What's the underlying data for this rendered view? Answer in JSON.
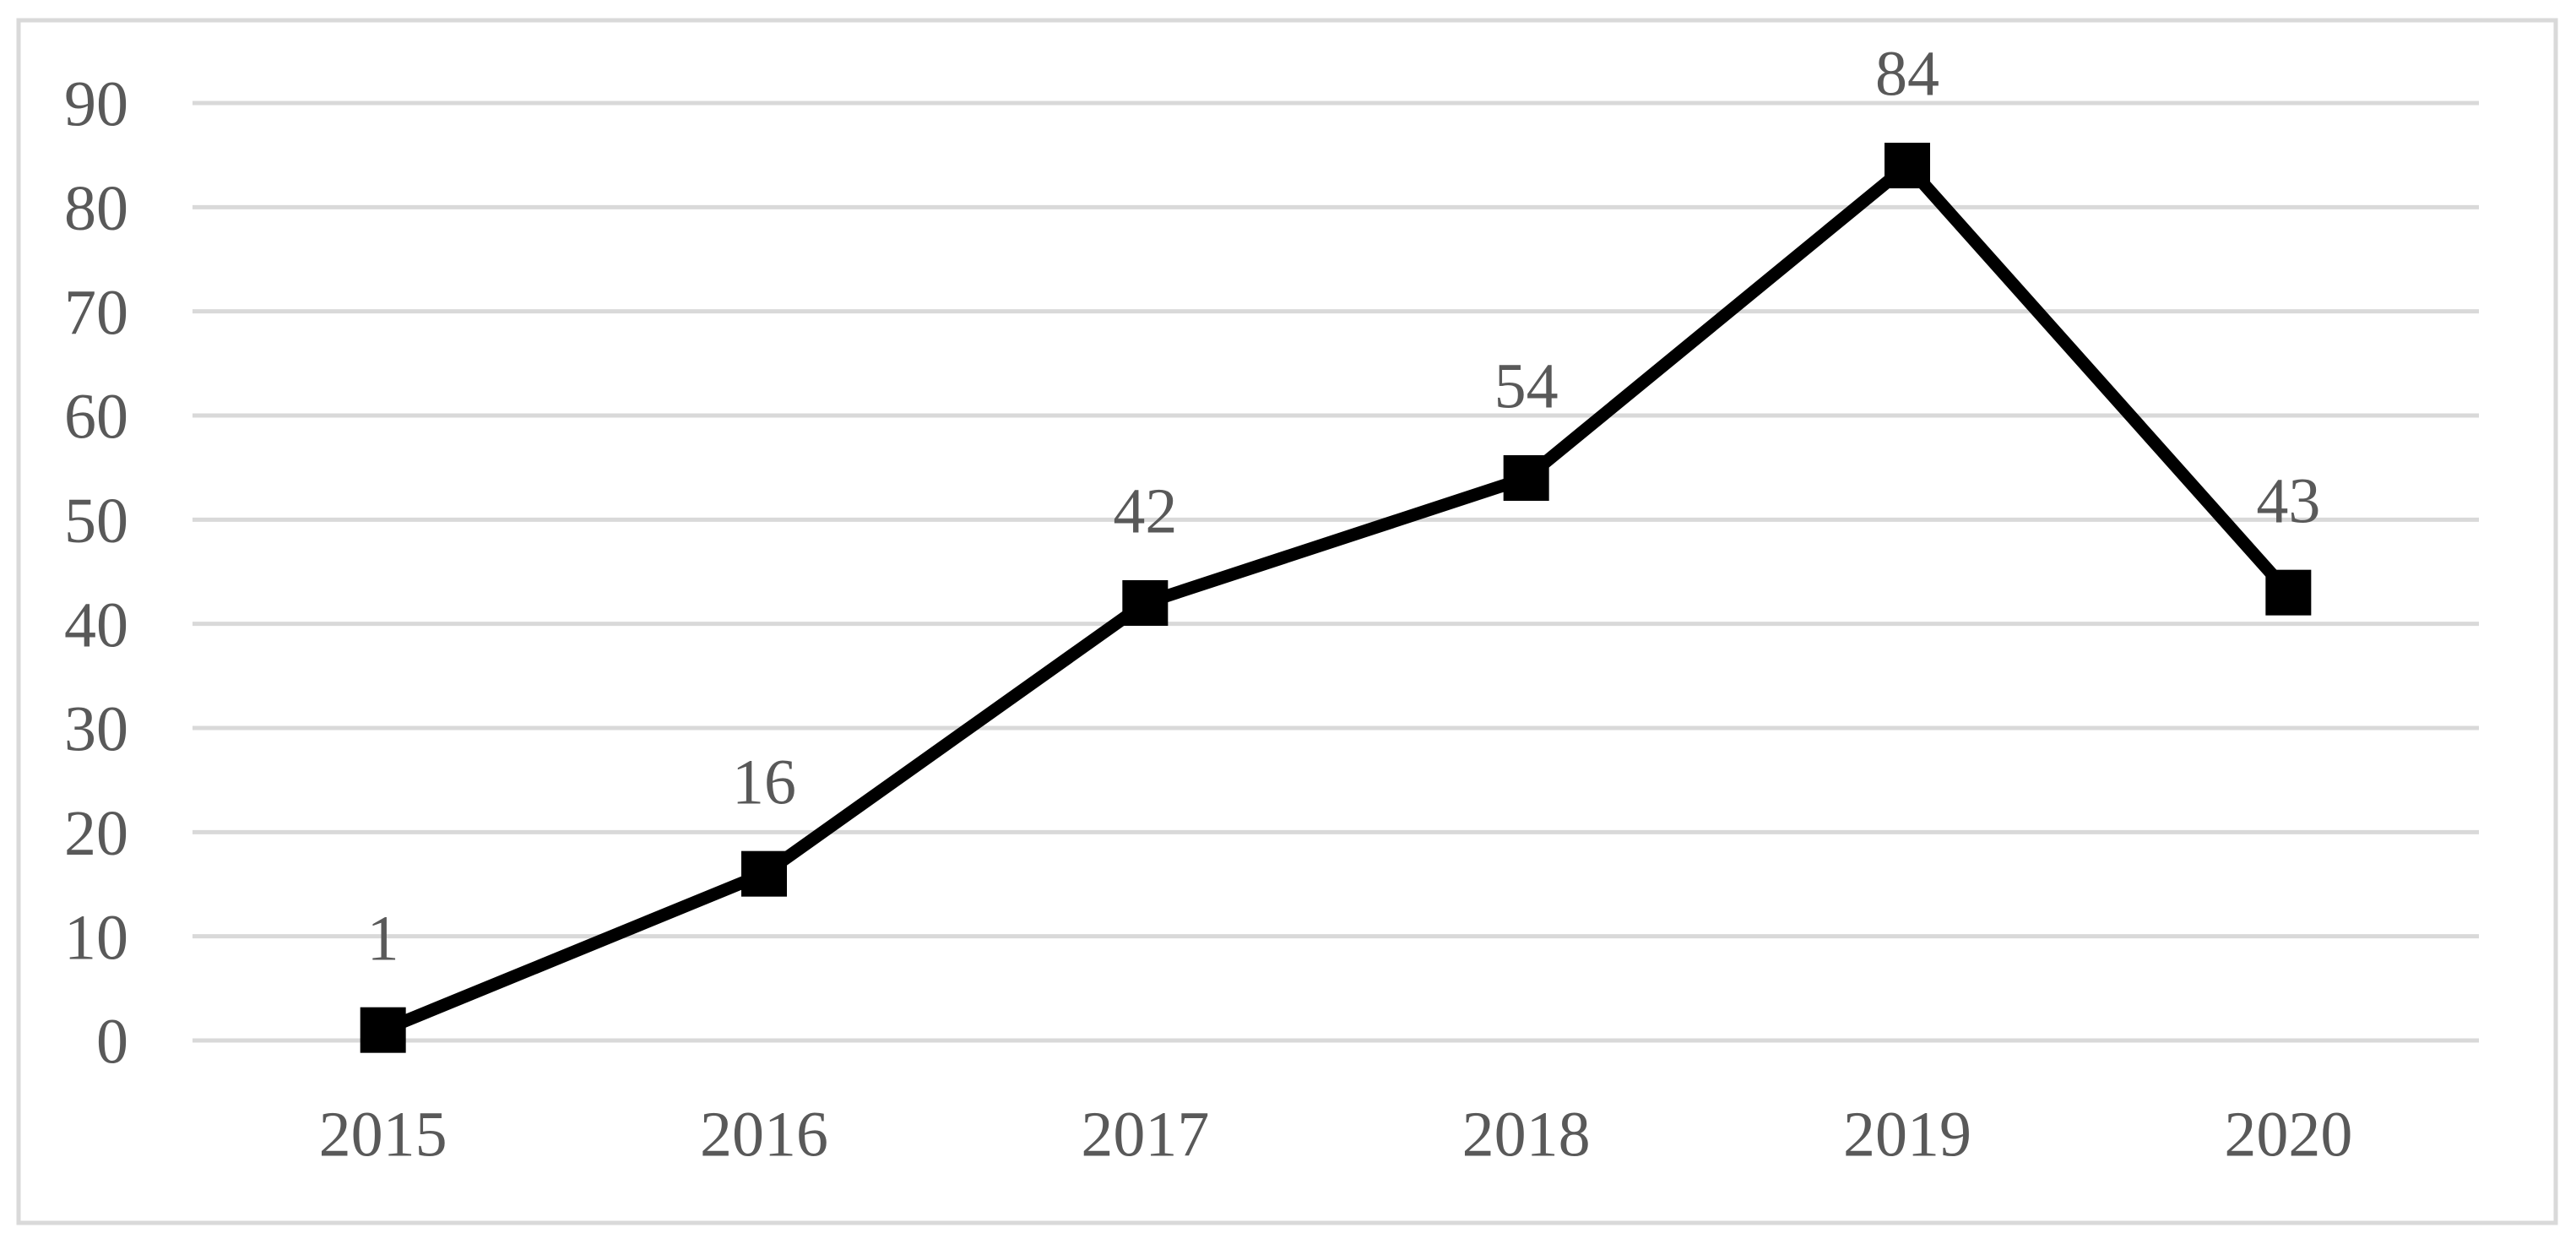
{
  "chart_data": {
    "type": "line",
    "title": "",
    "xlabel": "",
    "ylabel": "",
    "categories": [
      "2015",
      "2016",
      "2017",
      "2018",
      "2019",
      "2020"
    ],
    "values": [
      1,
      16,
      42,
      54,
      84,
      43
    ],
    "data_labels": [
      "1",
      "16",
      "42",
      "54",
      "84",
      "43"
    ],
    "ylim": [
      0,
      90
    ],
    "yticks": [
      0,
      10,
      20,
      30,
      40,
      50,
      60,
      70,
      80,
      90
    ],
    "ytick_labels": [
      "0",
      "10",
      "20",
      "30",
      "40",
      "50",
      "60",
      "70",
      "80",
      "90"
    ],
    "grid": "horizontal",
    "legend": "none",
    "marker_shape": "square",
    "colors": {
      "line": "#000000",
      "marker": "#000000",
      "grid": "#d9d9d9",
      "frame_border": "#d9d9d9",
      "text": "#595959",
      "background": "#ffffff"
    }
  }
}
